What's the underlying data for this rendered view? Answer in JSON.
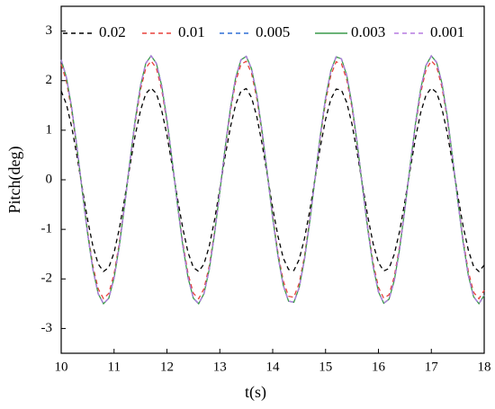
{
  "chart_data": {
    "type": "line",
    "xlabel": "t(s)",
    "ylabel": "Pitch(deg)",
    "x": [
      10,
      10.1,
      10.2,
      10.3,
      10.4,
      10.5,
      10.6,
      10.7,
      10.8,
      10.9,
      11,
      11.1,
      11.2,
      11.3,
      11.4,
      11.5,
      11.6,
      11.7,
      11.8,
      11.9,
      12,
      12.1,
      12.2,
      12.3,
      12.4,
      12.5,
      12.6,
      12.7,
      12.8,
      12.9,
      13,
      13.1,
      13.2,
      13.3,
      13.4,
      13.5,
      13.6,
      13.7,
      13.8,
      13.9,
      14,
      14.1,
      14.2,
      14.3,
      14.4,
      14.5,
      14.6,
      14.7,
      14.8,
      14.9,
      15,
      15.1,
      15.2,
      15.3,
      15.4,
      15.5,
      15.6,
      15.7,
      15.8,
      15.9,
      16,
      16.1,
      16.2,
      16.3,
      16.4,
      16.5,
      16.6,
      16.7,
      16.8,
      16.9,
      17,
      17.1,
      17.2,
      17.3,
      17.4,
      17.5,
      17.6,
      17.7,
      17.8,
      17.9,
      18
    ],
    "series": [
      {
        "name": "0.02",
        "color": "#000000",
        "style": "dashed",
        "values": [
          1.79,
          1.52,
          1.06,
          0.47,
          -0.18,
          -0.81,
          -1.34,
          -1.7,
          -1.85,
          -1.77,
          -1.47,
          -0.98,
          -0.38,
          0.28,
          0.9,
          1.4,
          1.74,
          1.85,
          1.74,
          1.4,
          0.9,
          0.28,
          -0.38,
          -0.98,
          -1.47,
          -1.77,
          -1.85,
          -1.7,
          -1.34,
          -0.81,
          -0.18,
          0.47,
          1.06,
          1.52,
          1.79,
          1.84,
          1.66,
          1.27,
          0.72,
          0.08,
          -0.57,
          -1.14,
          -1.58,
          -1.81,
          -1.83,
          -1.61,
          -1.19,
          -0.63,
          0.02,
          0.66,
          1.22,
          1.63,
          1.83,
          1.81,
          1.56,
          1.12,
          0.53,
          -0.11,
          -0.75,
          -1.29,
          -1.67,
          -1.84,
          -1.79,
          -1.5,
          -1.04,
          -0.44,
          0.21,
          0.84,
          1.36,
          1.71,
          1.85,
          1.76,
          1.44,
          0.95,
          0.34,
          -0.31,
          -0.93,
          -1.42,
          -1.75,
          -1.85,
          -1.72
        ]
      },
      {
        "name": "0.01",
        "color": "#e8413c",
        "style": "dashed",
        "values": [
          2.33,
          1.98,
          1.38,
          0.61,
          -0.23,
          -1.05,
          -1.74,
          -2.2,
          -2.4,
          -2.29,
          -1.9,
          -1.27,
          -0.49,
          0.36,
          1.16,
          1.82,
          2.25,
          2.4,
          2.25,
          1.82,
          1.16,
          0.36,
          -0.49,
          -1.27,
          -1.9,
          -2.29,
          -2.4,
          -2.2,
          -1.74,
          -1.05,
          -0.23,
          0.61,
          1.38,
          1.98,
          2.33,
          2.39,
          2.15,
          1.64,
          0.93,
          0.11,
          -0.73,
          -1.48,
          -2.04,
          -2.35,
          -2.37,
          -2.09,
          -1.55,
          -0.81,
          0.02,
          0.85,
          1.58,
          2.11,
          2.38,
          2.34,
          2.02,
          1.45,
          0.69,
          -0.15,
          -0.97,
          -1.68,
          -2.17,
          -2.39,
          -2.32,
          -1.95,
          -1.34,
          -0.57,
          0.28,
          1.09,
          1.76,
          2.22,
          2.4,
          2.28,
          1.87,
          1.24,
          0.44,
          -0.4,
          -1.2,
          -1.85,
          -2.27,
          -2.4,
          -2.23
        ]
      },
      {
        "name": "0.005",
        "color": "#2f6fd6",
        "style": "dashed",
        "values": [
          2.42,
          2.06,
          1.44,
          0.64,
          -0.24,
          -1.09,
          -1.81,
          -2.3,
          -2.5,
          -2.39,
          -1.98,
          -1.33,
          -0.51,
          0.38,
          1.21,
          1.9,
          2.35,
          2.5,
          2.35,
          1.9,
          1.21,
          0.38,
          -0.51,
          -1.33,
          -1.98,
          -2.39,
          -2.5,
          -2.3,
          -1.81,
          -1.09,
          -0.24,
          0.64,
          1.44,
          2.06,
          2.42,
          2.49,
          2.24,
          1.71,
          0.97,
          0.11,
          -0.77,
          -1.54,
          -2.13,
          -2.45,
          -2.47,
          -2.18,
          -1.61,
          -0.85,
          0.02,
          0.89,
          1.65,
          2.2,
          2.48,
          2.44,
          2.11,
          1.51,
          0.72,
          -0.16,
          -1.01,
          -1.75,
          -2.26,
          -2.49,
          -2.41,
          -2.03,
          -1.4,
          -0.59,
          0.29,
          1.13,
          1.84,
          2.31,
          2.5,
          2.37,
          1.95,
          1.29,
          0.46,
          -0.42,
          -1.25,
          -1.93,
          -2.36,
          -2.5,
          -2.33
        ]
      },
      {
        "name": "0.003",
        "color": "#3a9a4a",
        "style": "solid",
        "values": [
          2.42,
          2.06,
          1.44,
          0.64,
          -0.24,
          -1.09,
          -1.81,
          -2.3,
          -2.5,
          -2.39,
          -1.98,
          -1.33,
          -0.51,
          0.38,
          1.21,
          1.9,
          2.35,
          2.5,
          2.35,
          1.9,
          1.21,
          0.38,
          -0.51,
          -1.33,
          -1.98,
          -2.39,
          -2.5,
          -2.3,
          -1.81,
          -1.09,
          -0.24,
          0.64,
          1.44,
          2.06,
          2.42,
          2.49,
          2.24,
          1.71,
          0.97,
          0.11,
          -0.77,
          -1.54,
          -2.13,
          -2.45,
          -2.47,
          -2.18,
          -1.61,
          -0.85,
          0.02,
          0.89,
          1.65,
          2.2,
          2.48,
          2.44,
          2.11,
          1.51,
          0.72,
          -0.16,
          -1.01,
          -1.75,
          -2.26,
          -2.49,
          -2.41,
          -2.03,
          -1.4,
          -0.59,
          0.29,
          1.13,
          1.84,
          2.31,
          2.5,
          2.37,
          1.95,
          1.29,
          0.46,
          -0.42,
          -1.25,
          -1.93,
          -2.36,
          -2.5,
          -2.33
        ]
      },
      {
        "name": "0.001",
        "color": "#b57be0",
        "style": "dashed",
        "values": [
          2.42,
          2.06,
          1.44,
          0.64,
          -0.24,
          -1.09,
          -1.81,
          -2.3,
          -2.5,
          -2.39,
          -1.98,
          -1.33,
          -0.51,
          0.38,
          1.21,
          1.9,
          2.35,
          2.5,
          2.35,
          1.9,
          1.21,
          0.38,
          -0.51,
          -1.33,
          -1.98,
          -2.39,
          -2.5,
          -2.3,
          -1.81,
          -1.09,
          -0.24,
          0.64,
          1.44,
          2.06,
          2.42,
          2.49,
          2.24,
          1.71,
          0.97,
          0.11,
          -0.77,
          -1.54,
          -2.13,
          -2.45,
          -2.47,
          -2.18,
          -1.61,
          -0.85,
          0.02,
          0.89,
          1.65,
          2.2,
          2.48,
          2.44,
          2.11,
          1.51,
          0.72,
          -0.16,
          -1.01,
          -1.75,
          -2.26,
          -2.49,
          -2.41,
          -2.03,
          -1.4,
          -0.59,
          0.29,
          1.13,
          1.84,
          2.31,
          2.5,
          2.37,
          1.95,
          1.29,
          0.46,
          -0.42,
          -1.25,
          -1.93,
          -2.36,
          -2.5,
          -2.33
        ]
      }
    ],
    "xlim": [
      10,
      18
    ],
    "xticks": [
      10,
      11,
      12,
      13,
      14,
      15,
      16,
      17,
      18
    ],
    "ylim": [
      -3.5,
      3.5
    ],
    "yticks": [
      -3,
      -2,
      -1,
      0,
      1,
      2,
      3
    ],
    "legend": "top"
  }
}
